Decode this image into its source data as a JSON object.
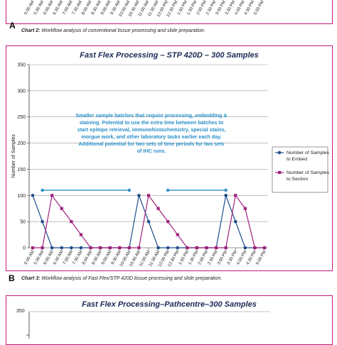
{
  "panel_a": {
    "letter": "A",
    "caption_bold": "Chart 2:",
    "caption_text": " Workflow analysis of conventional tissue processing and slide preparation.",
    "tick_labels": [
      "5:00 AM",
      "5:30 AM",
      "6:00 AM",
      "6:30 AM",
      "7:00 AM",
      "7:30 AM",
      "8:00 AM",
      "8:30 AM",
      "9:00 AM",
      "9:30 AM",
      "10:00 AM",
      "10:30 AM",
      "11:00 AM",
      "11:30 AM",
      "12:00 PM",
      "12:30 PM",
      "1:00 PM",
      "1:30 PM",
      "2:00 PM",
      "2:30 PM",
      "3:00 PM",
      "3:30 PM",
      "4:00 PM",
      "4:30 PM",
      "5:00 PM"
    ]
  },
  "panel_b": {
    "letter": "B",
    "caption_bold": "Chart 3:",
    "caption_text": " Workflow analysis of Fast Flex/STP 420D tissue processing and slide preparation."
  },
  "panel_c": {
    "title": "Fast Flex Processing–Pathcentre–300 Samples",
    "y_top_label": "350"
  },
  "chart_data": [
    {
      "type": "line",
      "title": "Fast Flex Processing – STP 420D – 300 Samples",
      "ylabel": "Number of Samples",
      "xlabel": "",
      "ylim": [
        0,
        350
      ],
      "yticks": [
        0,
        50,
        100,
        150,
        200,
        250,
        300,
        350
      ],
      "grid": true,
      "legend_position": "right",
      "categories": [
        "5:00 AM",
        "5:30 AM",
        "6:00 AM",
        "6:30 AM",
        "7:00 AM",
        "7:30 AM",
        "8:00 AM",
        "8:30 AM",
        "9:00 AM",
        "9:30 AM",
        "10:00 AM",
        "10:30 AM",
        "11:00 AM",
        "11:30 AM",
        "12:00 PM",
        "12:30 PM",
        "1:00 PM",
        "1:30 PM",
        "2:00 PM",
        "2:30 PM",
        "3:00 PM",
        "3:30 PM",
        "4:00 PM",
        "4:30 PM",
        "5:00 PM"
      ],
      "series": [
        {
          "name": "Number of Samples to Embed",
          "color": "#1f4e8c",
          "marker": "circle",
          "values": [
            100,
            50,
            0,
            0,
            0,
            0,
            0,
            0,
            0,
            0,
            0,
            100,
            50,
            0,
            0,
            0,
            0,
            0,
            0,
            0,
            100,
            50,
            0,
            0,
            0
          ]
        },
        {
          "name": "Number of Samples to Section",
          "color": "#a0207c",
          "marker": "square",
          "values": [
            0,
            0,
            100,
            75,
            50,
            25,
            0,
            0,
            0,
            0,
            0,
            0,
            100,
            75,
            50,
            25,
            0,
            0,
            0,
            0,
            0,
            100,
            75,
            0,
            0
          ]
        }
      ],
      "annotation": "Smaller sample batches that require processing, embedding & staining. Potential to use the extra time between batches to start epitope retrieval, immunohistochemistry, special stains, morgue work, and other laboratory tasks earlier each day. Additional potential for two sets of time periods for two sets of IHC runs.",
      "annotation_color": "#2a8fc8",
      "time_spans": [
        {
          "start": "5:30 AM",
          "end": "10:00 AM",
          "value": 110
        },
        {
          "start": "12:00 PM",
          "end": "3:00 PM",
          "value": 110
        }
      ]
    }
  ]
}
